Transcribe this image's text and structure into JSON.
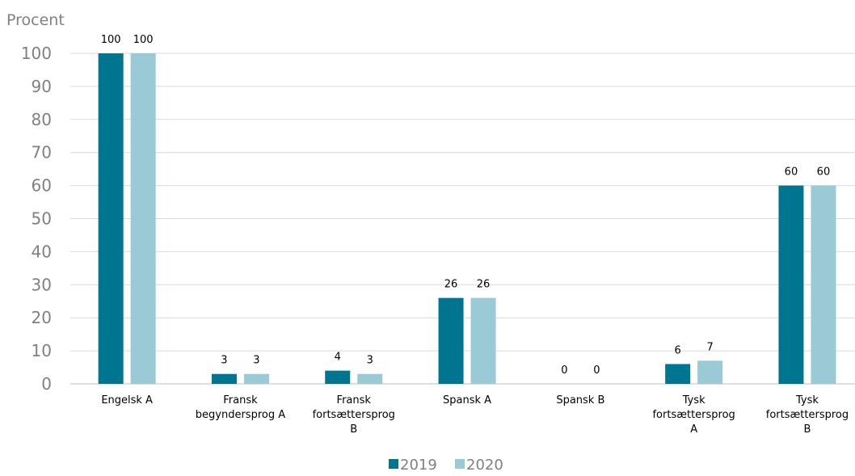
{
  "chart_data": {
    "type": "bar",
    "title": "",
    "xlabel": "",
    "ylabel": "Procent",
    "ylim": [
      0,
      100
    ],
    "yticks": [
      0,
      10,
      20,
      30,
      40,
      50,
      60,
      70,
      80,
      90,
      100
    ],
    "grid": true,
    "legend_position": "bottom",
    "categories": [
      "Engelsk A",
      "Fransk begyndersprog A",
      "Fransk fortsættersprog B",
      "Spansk A",
      "Spansk B",
      "Tysk fortsættersprog A",
      "Tysk fortsættersprog B"
    ],
    "category_lines": [
      [
        "Engelsk A"
      ],
      [
        "Fransk",
        "begyndersprog A"
      ],
      [
        "Fransk",
        "fortsættersprog",
        "B"
      ],
      [
        "Spansk A"
      ],
      [
        "Spansk B"
      ],
      [
        "Tysk",
        "fortsættersprog",
        "A"
      ],
      [
        "Tysk",
        "fortsættersprog",
        "B"
      ]
    ],
    "series": [
      {
        "name": "2019",
        "color": "#00758F",
        "values": [
          100,
          3,
          4,
          26,
          0,
          6,
          60
        ]
      },
      {
        "name": "2020",
        "color": "#99CAD5",
        "values": [
          100,
          3,
          3,
          26,
          0,
          7,
          60
        ]
      }
    ]
  }
}
